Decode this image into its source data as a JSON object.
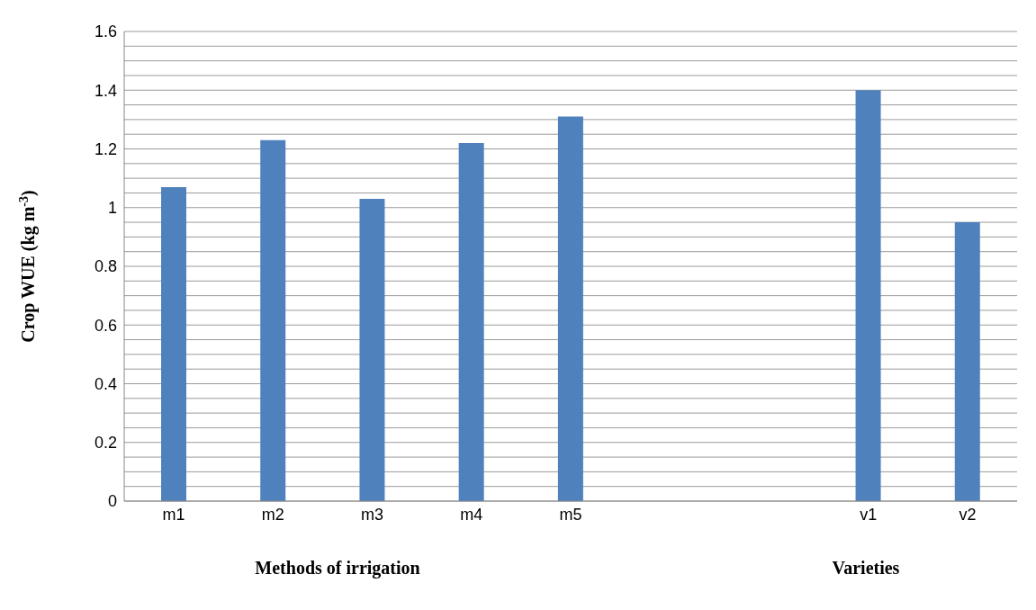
{
  "chart_data": {
    "type": "bar",
    "xlabel": "Methods of irrigation",
    "ylabel": "Crop WUE (kg m$^{-3}$)",
    "annotations": [
      "Varieties"
    ],
    "categories": [
      "m1",
      "m2",
      "m3",
      "m4",
      "m5",
      null,
      null,
      "v1",
      "v2"
    ],
    "values": [
      1.07,
      1.23,
      1.03,
      1.22,
      1.31,
      null,
      null,
      1.4,
      0.95
    ],
    "color": "#4f81bd",
    "ylim": [
      0,
      1.6
    ],
    "yticks": [
      0,
      {
        "value": 0.05,
        "label": null
      },
      {
        "value": 0.1,
        "label": null
      },
      {
        "value": 0.15,
        "label": null
      },
      0.2,
      {
        "value": 0.25,
        "label": null
      },
      {
        "value": 0.3,
        "label": null
      },
      {
        "value": 0.35,
        "label": null
      },
      0.4,
      {
        "value": 0.45,
        "label": null
      },
      {
        "value": 0.5,
        "label": null
      },
      {
        "value": 0.55,
        "label": null
      },
      0.6,
      {
        "value": 0.65,
        "label": null
      },
      {
        "value": 0.7,
        "label": null
      },
      {
        "value": 0.75,
        "label": null
      },
      0.8,
      {
        "value": 0.85,
        "label": null
      },
      {
        "value": 0.9,
        "label": null
      },
      {
        "value": 0.95,
        "label": null
      },
      1,
      {
        "value": 1.05,
        "label": null
      },
      {
        "value": 1.1,
        "label": null
      },
      {
        "value": 1.15,
        "label": null
      },
      1.2,
      {
        "value": 1.25,
        "label": null
      },
      {
        "value": 1.3,
        "label": null
      },
      {
        "value": 1.35,
        "label": null
      },
      1.4,
      {
        "value": 1.45,
        "label": null
      },
      {
        "value": 1.5,
        "label": null
      },
      {
        "value": 1.55,
        "label": null
      },
      1.6
    ],
    "grid": true
  }
}
